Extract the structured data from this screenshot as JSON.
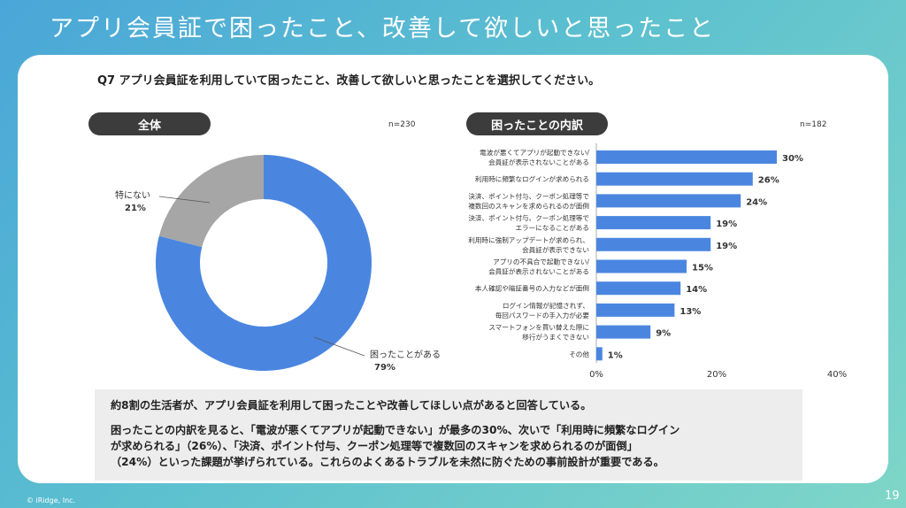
{
  "header": {
    "title": "アプリ会員証で困ったこと、改善して欲しいと思ったこと"
  },
  "question": "Q7 アプリ会員証を利用していて困ったこと、改善して欲しいと思ったことを選択してください。",
  "colors": {
    "primary": "#4a86e0",
    "secondary": "#a6a6a6",
    "pill": "#3c3c3c",
    "panel": "#ffffff"
  },
  "left": {
    "pill": "全体",
    "n": "n=230"
  },
  "right": {
    "pill": "困ったことの内訳",
    "n": "n=182"
  },
  "chart_data": [
    {
      "type": "pie",
      "style": "donut",
      "slices": [
        {
          "label": "困ったことがある",
          "value": 79,
          "value_label": "79%",
          "color": "#4a86e0"
        },
        {
          "label": "特にない",
          "value": 21,
          "value_label": "21%",
          "color": "#a6a6a6"
        }
      ]
    },
    {
      "type": "bar",
      "orientation": "horizontal",
      "xlim": [
        0,
        40
      ],
      "ticks": [
        "0%",
        "20%",
        "40%"
      ],
      "grid": false,
      "color": "#4a86e0",
      "categories": [
        [
          "電波が悪くてアプリが起動できない/",
          "会員証が表示されないことがある"
        ],
        [
          "利用時に頻繁なログインが求められる"
        ],
        [
          "決済、ポイント付与、クーポン処理等で",
          "複数回のスキャンを求められるのが面倒"
        ],
        [
          "決済、ポイント付与、クーポン処理等で",
          "エラーになることがある"
        ],
        [
          "利用時に強制アップデートが求められ、",
          "会員証が表示できない"
        ],
        [
          "アプリの不具合で起動できない/",
          "会員証が表示されないことがある"
        ],
        [
          "本人確認や暗証番号の入力などが面倒"
        ],
        [
          "ログイン情報が記憶されず、",
          "毎回パスワードの手入力が必要"
        ],
        [
          "スマートフォンを買い替えた際に",
          "移行がうまくできない"
        ],
        [
          "その他"
        ]
      ],
      "values": [
        30,
        26,
        24,
        19,
        19,
        15,
        14,
        13,
        9,
        1
      ],
      "value_labels": [
        "30%",
        "26%",
        "24%",
        "19%",
        "19%",
        "15%",
        "14%",
        "13%",
        "9%",
        "1%"
      ]
    }
  ],
  "summary": {
    "line1": "約8割の生活者が、アプリ会員証を利用して困ったことや改善してほしい点があると回答している。",
    "para2": [
      "困ったことの内訳を見ると、「電波が悪くてアプリが起動できない」が最多の30%、次いで「利用時に頻繁なログイン",
      "が求められる」（26%）、「決済、ポイント付与、クーポン処理等で複数回のスキャンを求められるのが面倒」",
      "（24%）といった課題が挙げられている。これらのよくあるトラブルを未然に防ぐための事前設計が重要である。"
    ]
  },
  "footer": {
    "copyright": "© iRidge, Inc.",
    "page": "19"
  }
}
